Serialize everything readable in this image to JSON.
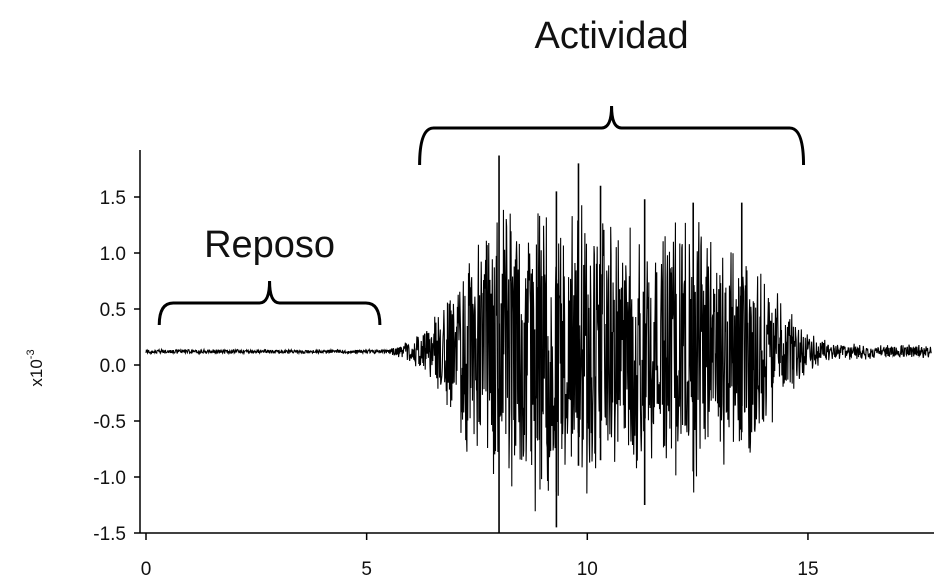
{
  "chart_data": {
    "type": "line",
    "title": "",
    "xlabel": "",
    "ylabel": "x10",
    "ylabel_exponent": "-3",
    "xlim": [
      0,
      17.8
    ],
    "ylim": [
      -1.55,
      1.9
    ],
    "xticks": [
      0,
      5,
      10,
      15
    ],
    "xtick_labels": [
      "0",
      "5",
      "10",
      "15"
    ],
    "yticks": [
      -1.5,
      -1.0,
      -0.5,
      0.0,
      0.5,
      1.0,
      1.5
    ],
    "ytick_labels": [
      "-1.5",
      "-1.0",
      "-0.5",
      "0.0",
      "0.5",
      "1.0",
      "1.5"
    ],
    "grid": false,
    "series": [
      {
        "baseline": 0.12,
        "envelope_x": [
          0,
          5.5,
          6.0,
          6.5,
          7.0,
          7.5,
          8.0,
          8.5,
          9.0,
          9.5,
          10.0,
          10.5,
          11.0,
          11.5,
          12.0,
          12.5,
          13.0,
          13.5,
          14.0,
          14.5,
          15.0,
          15.5,
          17.8
        ],
        "envelope_amplitude": [
          0.02,
          0.02,
          0.12,
          0.3,
          0.7,
          1.1,
          1.4,
          1.45,
          1.55,
          1.5,
          1.35,
          1.2,
          1.15,
          1.1,
          1.25,
          1.3,
          1.2,
          1.1,
          0.75,
          0.45,
          0.2,
          0.08,
          0.06
        ],
        "spikes": [
          {
            "x": 8.0,
            "max": 1.87,
            "min": -1.5
          },
          {
            "x": 9.3,
            "max": 1.55,
            "min": -1.45
          },
          {
            "x": 9.8,
            "max": 1.8,
            "min": -0.9
          },
          {
            "x": 10.3,
            "max": 1.6,
            "min": -0.85
          },
          {
            "x": 11.3,
            "max": 1.48,
            "min": -1.25
          },
          {
            "x": 12.4,
            "max": 1.45,
            "min": -0.95
          },
          {
            "x": 13.5,
            "max": 1.45,
            "min": -0.6
          }
        ]
      }
    ],
    "annotations": [
      {
        "text": "Reposo",
        "x_from": 0.3,
        "x_to": 5.3
      },
      {
        "text": "Actividad",
        "x_from": 6.2,
        "x_to": 14.9
      }
    ]
  }
}
